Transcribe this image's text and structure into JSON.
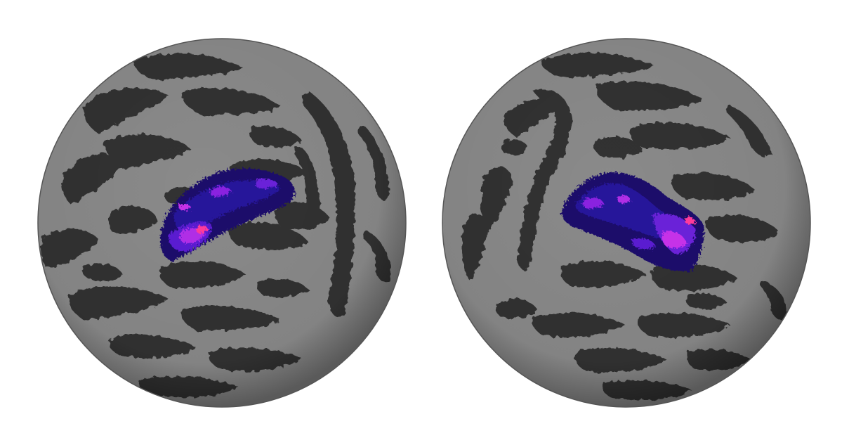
{
  "scene": {
    "background": "#ffffff",
    "gyri_color": "#8a8a8a",
    "sulci_color": "#333333",
    "activation_colors": [
      "#140a5c",
      "#2a14a0",
      "#4b1cc8",
      "#8a22e0",
      "#c630e8",
      "#ff3a9a"
    ]
  },
  "hemispheres": [
    {
      "id": "left",
      "icon": "brain-sphere"
    },
    {
      "id": "right",
      "icon": "brain-sphere"
    }
  ]
}
